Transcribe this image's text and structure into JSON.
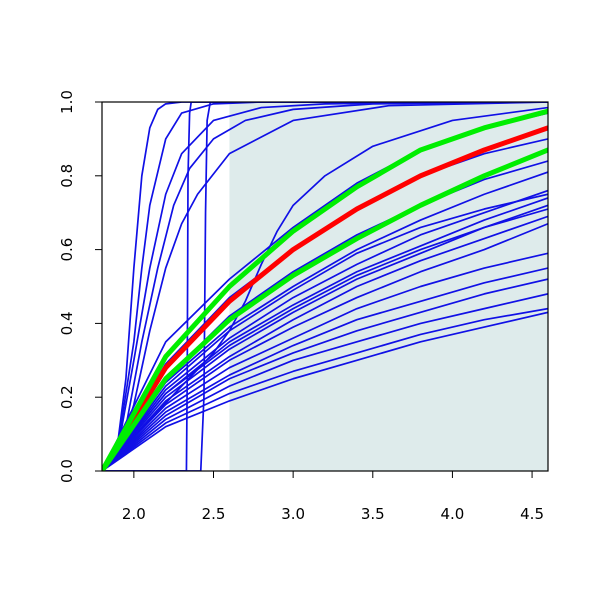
{
  "chart_data": {
    "type": "line",
    "title": "",
    "xlabel": "",
    "ylabel": "",
    "xlim": [
      1.8,
      4.6
    ],
    "ylim": [
      0.0,
      1.0
    ],
    "xticks": [
      2.0,
      2.5,
      3.0,
      3.5,
      4.0,
      4.5
    ],
    "yticks": [
      0.0,
      0.2,
      0.4,
      0.6,
      0.8,
      1.0
    ],
    "xtick_labels": [
      "2.0",
      "2.5",
      "3.0",
      "3.5",
      "4.0",
      "4.5"
    ],
    "ytick_labels": [
      "0.0",
      "0.2",
      "0.4",
      "0.6",
      "0.8",
      "1.0"
    ],
    "grid": false,
    "legend": "none",
    "shaded_region": {
      "x": [
        2.6,
        4.6
      ],
      "y": [
        0.0,
        1.0
      ],
      "color": "#deebeb"
    },
    "colors": {
      "blue": "#1010e6",
      "red": "#ff0000",
      "green": "#00ee00",
      "axis": "#000000"
    },
    "series": [
      {
        "color": "blue",
        "x": [
          1.8,
          1.9,
          1.95,
          2.0,
          2.05,
          2.1,
          2.15,
          2.2,
          2.3,
          2.5,
          3.0,
          4.6
        ],
        "y": [
          0,
          0.08,
          0.25,
          0.55,
          0.8,
          0.93,
          0.98,
          0.995,
          1,
          1,
          1,
          1
        ]
      },
      {
        "color": "blue",
        "x": [
          1.8,
          1.9,
          2.0,
          2.05,
          2.1,
          2.2,
          2.3,
          2.5,
          2.8,
          3.5,
          4.6
        ],
        "y": [
          0,
          0.07,
          0.35,
          0.55,
          0.72,
          0.9,
          0.97,
          0.995,
          1,
          1,
          1
        ]
      },
      {
        "color": "blue",
        "x": [
          1.8,
          1.9,
          2.0,
          2.1,
          2.2,
          2.3,
          2.5,
          2.8,
          3.2,
          4.0,
          4.6
        ],
        "y": [
          0,
          0.06,
          0.3,
          0.55,
          0.75,
          0.86,
          0.95,
          0.985,
          0.995,
          1,
          1
        ]
      },
      {
        "color": "blue",
        "x": [
          1.8,
          1.95,
          2.05,
          2.15,
          2.25,
          2.35,
          2.5,
          2.7,
          3.0,
          3.5,
          4.6
        ],
        "y": [
          0,
          0.12,
          0.35,
          0.55,
          0.72,
          0.82,
          0.9,
          0.95,
          0.98,
          0.995,
          1
        ]
      },
      {
        "color": "blue",
        "x": [
          1.8,
          1.9,
          2.0,
          2.1,
          2.2,
          2.3,
          2.4,
          2.6,
          3.0,
          3.6,
          4.6
        ],
        "y": [
          0,
          0.04,
          0.18,
          0.38,
          0.55,
          0.67,
          0.75,
          0.86,
          0.95,
          0.99,
          1
        ]
      },
      {
        "color": "blue",
        "x": [
          1.8,
          2.33,
          2.335,
          2.34,
          2.35,
          2.36,
          4.6
        ],
        "y": [
          0,
          0,
          0.25,
          0.8,
          0.97,
          1,
          1
        ]
      },
      {
        "color": "blue",
        "x": [
          1.8,
          2.42,
          2.44,
          2.45,
          2.46,
          2.48,
          4.6
        ],
        "y": [
          0,
          0,
          0.2,
          0.7,
          0.95,
          1,
          1
        ]
      },
      {
        "color": "blue",
        "x": [
          1.8,
          2.3,
          2.5,
          2.6,
          2.7,
          2.8,
          2.9,
          3.0,
          3.2,
          3.5,
          4.0,
          4.6
        ],
        "y": [
          0,
          0.23,
          0.32,
          0.38,
          0.46,
          0.56,
          0.65,
          0.72,
          0.8,
          0.88,
          0.95,
          0.985
        ]
      },
      {
        "color": "blue",
        "x": [
          1.8,
          2.2,
          2.6,
          3.0,
          3.4,
          3.8,
          4.2,
          4.6
        ],
        "y": [
          0,
          0.35,
          0.52,
          0.66,
          0.78,
          0.87,
          0.93,
          0.97
        ]
      },
      {
        "color": "blue",
        "x": [
          1.8,
          2.2,
          2.6,
          3.0,
          3.4,
          3.8,
          4.2,
          4.6
        ],
        "y": [
          0,
          0.29,
          0.47,
          0.6,
          0.71,
          0.8,
          0.86,
          0.9
        ]
      },
      {
        "color": "blue",
        "x": [
          1.8,
          2.2,
          2.6,
          3.0,
          3.4,
          3.8,
          4.2,
          4.6
        ],
        "y": [
          0,
          0.25,
          0.42,
          0.54,
          0.64,
          0.72,
          0.79,
          0.84
        ]
      },
      {
        "color": "blue",
        "x": [
          1.8,
          2.2,
          2.6,
          3.0,
          3.4,
          3.8,
          4.2,
          4.6
        ],
        "y": [
          0,
          0.24,
          0.39,
          0.5,
          0.6,
          0.68,
          0.75,
          0.81
        ]
      },
      {
        "color": "blue",
        "x": [
          1.8,
          2.2,
          2.6,
          3.0,
          3.4,
          3.8,
          4.2,
          4.6
        ],
        "y": [
          0,
          0.22,
          0.36,
          0.47,
          0.56,
          0.64,
          0.7,
          0.76
        ]
      },
      {
        "color": "blue",
        "x": [
          1.8,
          2.2,
          2.6,
          3.0,
          3.4,
          3.8,
          4.2,
          4.6
        ],
        "y": [
          0,
          0.21,
          0.35,
          0.45,
          0.54,
          0.61,
          0.68,
          0.74
        ]
      },
      {
        "color": "blue",
        "x": [
          1.8,
          2.2,
          2.6,
          3.0,
          3.4,
          3.8,
          4.2,
          4.6
        ],
        "y": [
          0,
          0.2,
          0.33,
          0.43,
          0.52,
          0.59,
          0.66,
          0.72
        ]
      },
      {
        "color": "blue",
        "x": [
          1.8,
          2.2,
          2.6,
          3.0,
          3.4,
          3.8,
          4.2,
          4.6
        ],
        "y": [
          0,
          0.19,
          0.31,
          0.41,
          0.5,
          0.57,
          0.63,
          0.69
        ]
      },
      {
        "color": "blue",
        "x": [
          1.8,
          2.2,
          2.6,
          3.0,
          3.4,
          3.8,
          4.2,
          4.6
        ],
        "y": [
          0,
          0.18,
          0.3,
          0.39,
          0.47,
          0.54,
          0.6,
          0.67
        ]
      },
      {
        "color": "blue",
        "x": [
          1.8,
          2.2,
          2.6,
          3.0,
          3.4,
          3.8,
          4.2,
          4.6
        ],
        "y": [
          0,
          0.17,
          0.28,
          0.36,
          0.44,
          0.5,
          0.55,
          0.59
        ]
      },
      {
        "color": "blue",
        "x": [
          1.8,
          2.2,
          2.6,
          3.0,
          3.4,
          3.8,
          4.2,
          4.6
        ],
        "y": [
          0,
          0.16,
          0.26,
          0.34,
          0.41,
          0.46,
          0.51,
          0.55
        ]
      },
      {
        "color": "blue",
        "x": [
          1.8,
          2.2,
          2.6,
          3.0,
          3.4,
          3.8,
          4.2,
          4.6
        ],
        "y": [
          0,
          0.15,
          0.25,
          0.32,
          0.38,
          0.43,
          0.48,
          0.52
        ]
      },
      {
        "color": "blue",
        "x": [
          1.8,
          2.2,
          2.6,
          3.0,
          3.4,
          3.8,
          4.2,
          4.6
        ],
        "y": [
          0,
          0.14,
          0.23,
          0.3,
          0.35,
          0.4,
          0.44,
          0.48
        ]
      },
      {
        "color": "blue",
        "x": [
          1.8,
          2.2,
          2.6,
          3.0,
          3.4,
          3.8,
          4.2,
          4.6
        ],
        "y": [
          0,
          0.13,
          0.21,
          0.27,
          0.32,
          0.37,
          0.41,
          0.44
        ]
      },
      {
        "color": "blue",
        "x": [
          1.8,
          2.2,
          2.6,
          3.0,
          3.4,
          3.8,
          4.2,
          4.6
        ],
        "y": [
          0,
          0.12,
          0.19,
          0.25,
          0.3,
          0.35,
          0.39,
          0.43
        ]
      },
      {
        "color": "blue",
        "x": [
          1.8,
          2.2,
          2.6,
          3.0,
          3.4,
          3.8,
          4.2,
          4.6
        ],
        "y": [
          0,
          0.23,
          0.38,
          0.49,
          0.59,
          0.66,
          0.71,
          0.75
        ]
      },
      {
        "color": "blue",
        "x": [
          1.8,
          2.2,
          2.6,
          3.0,
          3.4,
          3.8,
          4.2,
          4.6
        ],
        "y": [
          0,
          0.21,
          0.34,
          0.44,
          0.53,
          0.6,
          0.66,
          0.71
        ]
      },
      {
        "color": "red",
        "x": [
          1.8,
          2.2,
          2.6,
          3.0,
          3.4,
          3.8,
          4.2,
          4.6
        ],
        "y": [
          0,
          0.28,
          0.46,
          0.6,
          0.71,
          0.8,
          0.87,
          0.93
        ]
      },
      {
        "color": "green",
        "x": [
          1.8,
          2.2,
          2.6,
          3.0,
          3.4,
          3.8,
          4.2,
          4.6
        ],
        "y": [
          0,
          0.31,
          0.5,
          0.65,
          0.77,
          0.87,
          0.93,
          0.975
        ]
      },
      {
        "color": "green",
        "x": [
          1.8,
          2.2,
          2.6,
          3.0,
          3.4,
          3.8,
          4.2,
          4.6
        ],
        "y": [
          0,
          0.25,
          0.41,
          0.53,
          0.63,
          0.72,
          0.8,
          0.87
        ]
      }
    ]
  }
}
